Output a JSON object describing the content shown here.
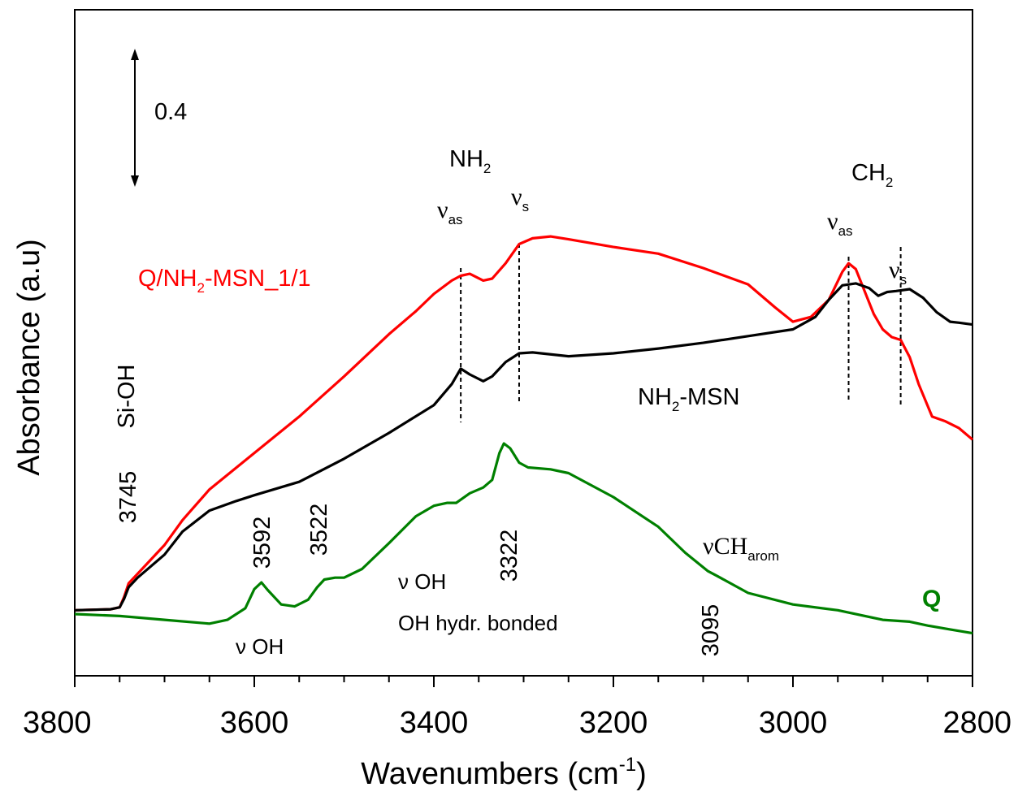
{
  "chart_data": {
    "type": "line",
    "xlabel": "Wavenumbers (cm",
    "xlabel_superscript": "-1",
    "xlabel_close": ")",
    "ylabel": "Absorbance (a.u)",
    "xlim": [
      3800,
      2800
    ],
    "x_reversed": true,
    "x_ticks": [
      "3800",
      "3600",
      "3400",
      "3200",
      "3000",
      "2800"
    ],
    "y_ticks_shown": false,
    "scale_bar_label": "0.4",
    "series": [
      {
        "name": "Q/NH",
        "name_sub": "2",
        "name_rest": "-MSN_1/1",
        "color": "#ff0000",
        "points": [
          [
            3800,
            0.04
          ],
          [
            3760,
            0.05
          ],
          [
            3750,
            0.07
          ],
          [
            3745,
            0.18
          ],
          [
            3740,
            0.32
          ],
          [
            3730,
            0.42
          ],
          [
            3700,
            0.72
          ],
          [
            3680,
            0.98
          ],
          [
            3650,
            1.3
          ],
          [
            3600,
            1.68
          ],
          [
            3550,
            2.06
          ],
          [
            3500,
            2.48
          ],
          [
            3450,
            2.92
          ],
          [
            3420,
            3.16
          ],
          [
            3400,
            3.34
          ],
          [
            3380,
            3.48
          ],
          [
            3370,
            3.53
          ],
          [
            3360,
            3.55
          ],
          [
            3345,
            3.48
          ],
          [
            3335,
            3.5
          ],
          [
            3320,
            3.66
          ],
          [
            3305,
            3.86
          ],
          [
            3290,
            3.92
          ],
          [
            3270,
            3.94
          ],
          [
            3250,
            3.91
          ],
          [
            3200,
            3.83
          ],
          [
            3150,
            3.76
          ],
          [
            3100,
            3.61
          ],
          [
            3050,
            3.44
          ],
          [
            3020,
            3.2
          ],
          [
            3000,
            3.05
          ],
          [
            2980,
            3.1
          ],
          [
            2960,
            3.28
          ],
          [
            2945,
            3.57
          ],
          [
            2938,
            3.66
          ],
          [
            2930,
            3.6
          ],
          [
            2910,
            3.13
          ],
          [
            2900,
            2.97
          ],
          [
            2890,
            2.89
          ],
          [
            2880,
            2.86
          ],
          [
            2870,
            2.68
          ],
          [
            2860,
            2.4
          ],
          [
            2845,
            2.06
          ],
          [
            2830,
            2.01
          ],
          [
            2815,
            1.94
          ],
          [
            2800,
            1.82
          ]
        ]
      },
      {
        "name": "NH",
        "name_sub": "2",
        "name_rest": "-MSN",
        "color": "#000000",
        "points": [
          [
            3800,
            0.04
          ],
          [
            3760,
            0.05
          ],
          [
            3750,
            0.07
          ],
          [
            3745,
            0.16
          ],
          [
            3740,
            0.28
          ],
          [
            3730,
            0.38
          ],
          [
            3700,
            0.62
          ],
          [
            3680,
            0.86
          ],
          [
            3650,
            1.08
          ],
          [
            3620,
            1.18
          ],
          [
            3600,
            1.24
          ],
          [
            3550,
            1.38
          ],
          [
            3500,
            1.62
          ],
          [
            3450,
            1.89
          ],
          [
            3400,
            2.18
          ],
          [
            3380,
            2.4
          ],
          [
            3370,
            2.56
          ],
          [
            3360,
            2.5
          ],
          [
            3345,
            2.43
          ],
          [
            3335,
            2.48
          ],
          [
            3320,
            2.63
          ],
          [
            3305,
            2.72
          ],
          [
            3290,
            2.73
          ],
          [
            3250,
            2.69
          ],
          [
            3200,
            2.72
          ],
          [
            3150,
            2.77
          ],
          [
            3100,
            2.83
          ],
          [
            3050,
            2.9
          ],
          [
            3000,
            2.97
          ],
          [
            2975,
            3.1
          ],
          [
            2960,
            3.28
          ],
          [
            2945,
            3.43
          ],
          [
            2930,
            3.45
          ],
          [
            2915,
            3.4
          ],
          [
            2905,
            3.32
          ],
          [
            2895,
            3.36
          ],
          [
            2885,
            3.37
          ],
          [
            2870,
            3.39
          ],
          [
            2855,
            3.3
          ],
          [
            2840,
            3.15
          ],
          [
            2825,
            3.05
          ],
          [
            2815,
            3.04
          ],
          [
            2800,
            3.02
          ]
        ]
      },
      {
        "name": "Q",
        "color": "#008000",
        "points": [
          [
            3800,
            0.0
          ],
          [
            3750,
            -0.02
          ],
          [
            3700,
            -0.06
          ],
          [
            3650,
            -0.1
          ],
          [
            3630,
            -0.06
          ],
          [
            3610,
            0.06
          ],
          [
            3600,
            0.26
          ],
          [
            3592,
            0.33
          ],
          [
            3585,
            0.25
          ],
          [
            3570,
            0.1
          ],
          [
            3555,
            0.08
          ],
          [
            3540,
            0.15
          ],
          [
            3530,
            0.28
          ],
          [
            3522,
            0.36
          ],
          [
            3510,
            0.38
          ],
          [
            3500,
            0.38
          ],
          [
            3480,
            0.47
          ],
          [
            3450,
            0.74
          ],
          [
            3420,
            1.02
          ],
          [
            3400,
            1.13
          ],
          [
            3385,
            1.16
          ],
          [
            3375,
            1.16
          ],
          [
            3360,
            1.26
          ],
          [
            3345,
            1.32
          ],
          [
            3335,
            1.4
          ],
          [
            3327,
            1.68
          ],
          [
            3322,
            1.78
          ],
          [
            3315,
            1.73
          ],
          [
            3305,
            1.58
          ],
          [
            3295,
            1.53
          ],
          [
            3270,
            1.51
          ],
          [
            3250,
            1.47
          ],
          [
            3200,
            1.22
          ],
          [
            3150,
            0.91
          ],
          [
            3120,
            0.64
          ],
          [
            3095,
            0.45
          ],
          [
            3085,
            0.4
          ],
          [
            3050,
            0.22
          ],
          [
            3000,
            0.1
          ],
          [
            2950,
            0.04
          ],
          [
            2900,
            -0.06
          ],
          [
            2870,
            -0.08
          ],
          [
            2850,
            -0.12
          ],
          [
            2825,
            -0.16
          ],
          [
            2800,
            -0.2
          ]
        ]
      }
    ],
    "peak_markers": [
      {
        "x": 3370,
        "y_from": 2.56,
        "label": "ν",
        "label_sub": "as"
      },
      {
        "x": 3305,
        "y_from": 3.86,
        "label": "ν",
        "label_sub": "s"
      },
      {
        "x": 2938,
        "y_from": 3.66,
        "label": "ν",
        "label_sub": "as"
      },
      {
        "x": 2880,
        "y_from": 3.36,
        "label": "ν",
        "label_sub": "s"
      }
    ],
    "annotations": {
      "nh2_group": "NH",
      "nh2_group_sub": "2",
      "ch2_group": "CH",
      "ch2_group_sub": "2",
      "sioh": "Si-OH",
      "peak_3745": "3745",
      "peak_3592": "3592",
      "peak_3522": "3522",
      "peak_3322": "3322",
      "peak_3095": "3095",
      "voh_1": "ν OH",
      "voh_2": "ν OH",
      "oh_hydr": "OH hydr. bonded",
      "vch_main": "νCH",
      "vch_sub": "arom"
    }
  }
}
